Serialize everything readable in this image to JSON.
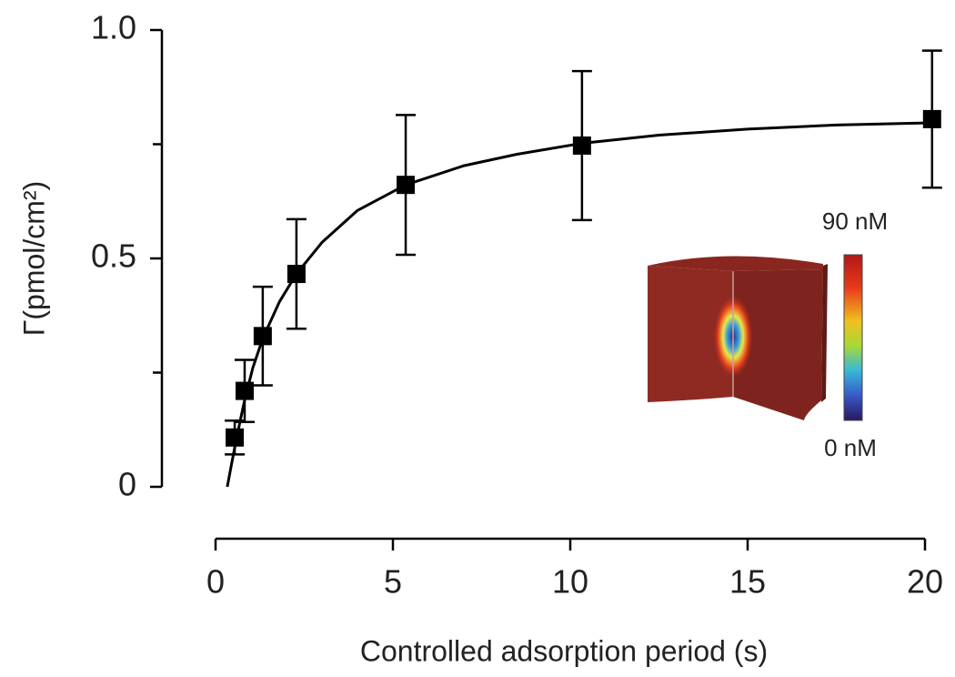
{
  "chart_data": {
    "type": "scatter",
    "x_label": "Controlled adsorption period (s)",
    "y_label": "Γ(pmol/cm²)",
    "xlim": [
      0,
      20
    ],
    "xticks": [
      0,
      5,
      10,
      15,
      20
    ],
    "ylim": [
      0,
      1
    ],
    "yticks": [
      0,
      0.5,
      {
        "value": 1,
        "label": "1.0"
      }
    ],
    "y_minor_ticks": [
      0.25,
      0.75
    ],
    "color": "#000000",
    "x": [
      0.54,
      0.82,
      1.33,
      2.28,
      5.36,
      10.33,
      20.2
    ],
    "values": [
      0.108,
      0.21,
      0.33,
      0.466,
      0.661,
      0.747,
      0.805
    ],
    "errors": [
      0.037,
      0.068,
      0.108,
      0.12,
      0.153,
      0.163,
      0.15
    ],
    "fit_x": [
      0.33,
      0.45,
      0.6,
      0.82,
      1.05,
      1.33,
      1.8,
      2.28,
      3,
      4,
      5.36,
      7,
      8.5,
      10.33,
      12.5,
      15,
      17.5,
      20.2
    ],
    "fit_values": [
      0,
      0.05,
      0.11,
      0.19,
      0.26,
      0.325,
      0.405,
      0.466,
      0.535,
      0.605,
      0.661,
      0.703,
      0.728,
      0.752,
      0.77,
      0.783,
      0.792,
      0.797
    ],
    "inset": {
      "top_label": "90 nM",
      "bottom_label": "0 nM"
    }
  }
}
